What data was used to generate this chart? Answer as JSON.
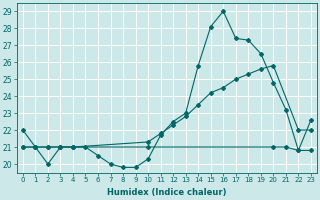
{
  "xlabel": "Humidex (Indice chaleur)",
  "xlim": [
    -0.5,
    23.5
  ],
  "ylim": [
    19.5,
    29.5
  ],
  "xticks": [
    0,
    1,
    2,
    3,
    4,
    5,
    6,
    7,
    8,
    9,
    10,
    11,
    12,
    13,
    14,
    15,
    16,
    17,
    18,
    19,
    20,
    21,
    22,
    23
  ],
  "yticks": [
    20,
    21,
    22,
    23,
    24,
    25,
    26,
    27,
    28,
    29
  ],
  "bg_color": "#cce8e8",
  "line_color": "#006666",
  "series1_x": [
    0,
    1,
    2,
    3,
    4,
    5,
    6,
    7,
    8,
    9,
    10,
    11,
    12,
    13,
    14,
    15,
    16,
    17,
    18,
    19,
    20,
    21,
    22,
    23
  ],
  "series1_y": [
    22,
    21,
    20,
    21,
    21,
    21,
    20.5,
    20,
    19.8,
    19.8,
    20.3,
    21.7,
    22.5,
    23.0,
    25.8,
    28.1,
    29.0,
    27.4,
    27.3,
    26.5,
    24.8,
    23.2,
    20.8,
    22.6
  ],
  "series2_x": [
    0,
    1,
    2,
    3,
    4,
    10,
    11,
    12,
    13,
    14,
    15,
    16,
    17,
    18,
    19,
    20,
    22,
    23
  ],
  "series2_y": [
    21,
    21,
    21,
    21,
    21,
    21.3,
    21.8,
    22.3,
    22.8,
    23.5,
    24.2,
    24.5,
    25.0,
    25.3,
    25.6,
    25.8,
    22.0,
    22.0
  ],
  "series3_x": [
    0,
    1,
    2,
    3,
    4,
    10,
    20,
    21,
    22,
    23
  ],
  "series3_y": [
    21,
    21,
    21,
    21,
    21,
    21,
    21,
    21,
    20.8,
    20.8
  ]
}
